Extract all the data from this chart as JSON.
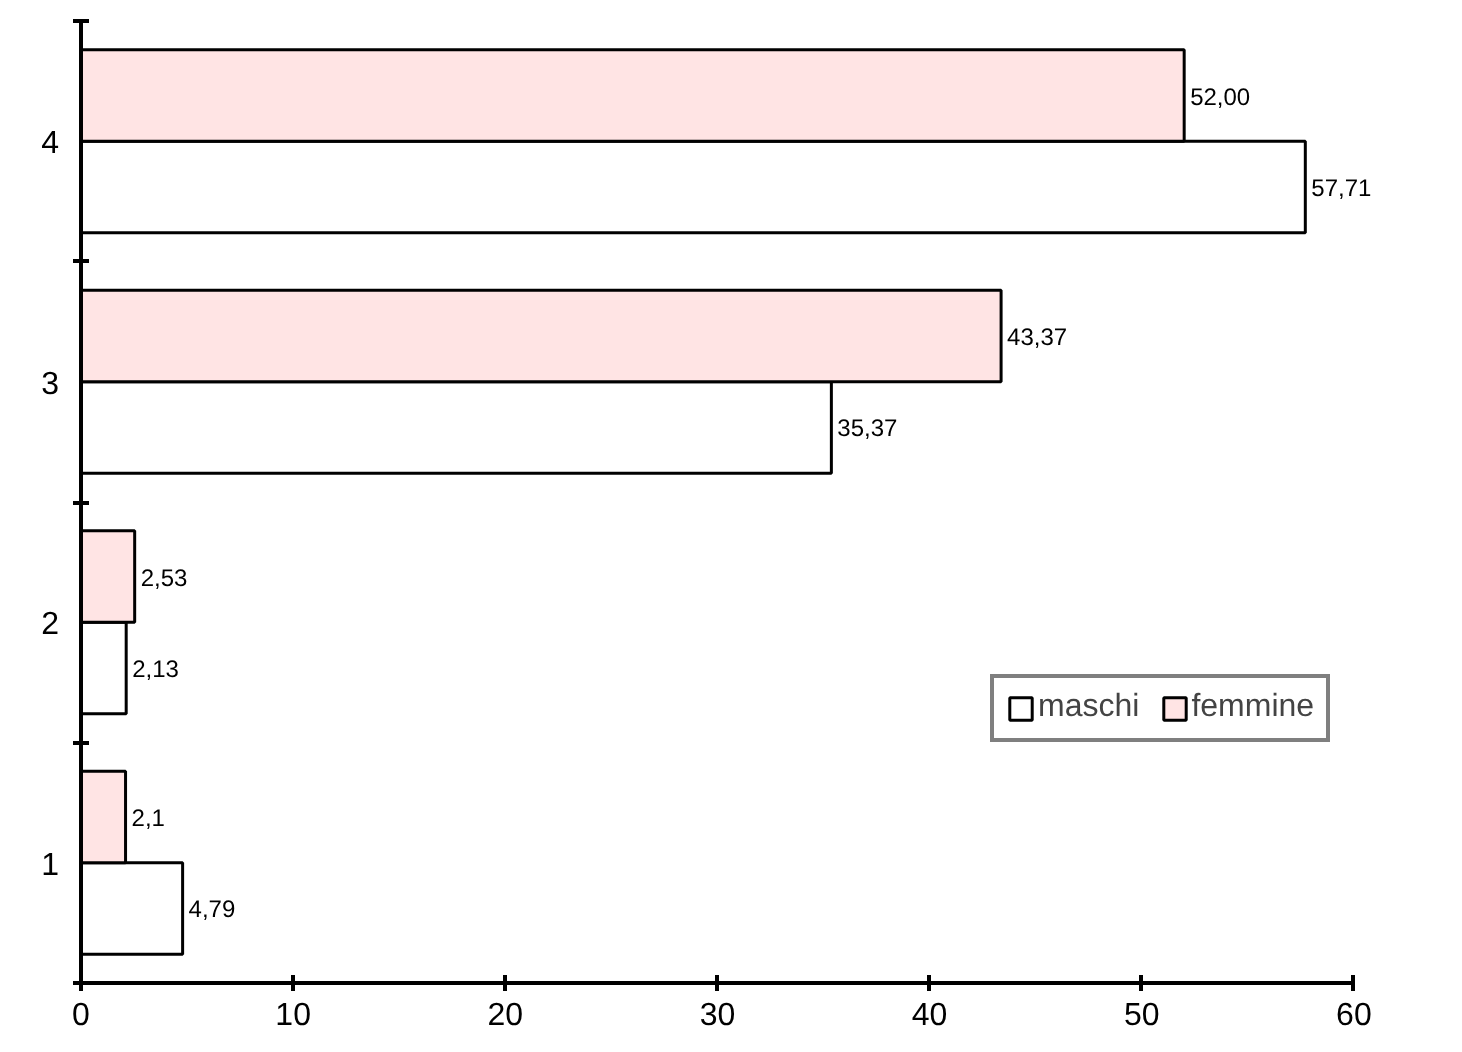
{
  "chart_data": {
    "type": "bar",
    "orientation": "horizontal",
    "categories": [
      "4",
      "3",
      "2",
      "1"
    ],
    "series": [
      {
        "name": "maschi",
        "color": "#ffffff",
        "values": [
          57.71,
          35.37,
          2.13,
          4.79
        ],
        "value_labels": [
          "57,71",
          "35,37",
          "2,13",
          "4,79"
        ]
      },
      {
        "name": "femmine",
        "color": "#ffe4e4",
        "values": [
          52.0,
          43.37,
          2.53,
          2.1
        ],
        "value_labels": [
          "52,00",
          "43,37",
          "2,53",
          "2,1"
        ]
      }
    ],
    "xlim": [
      0,
      60
    ],
    "xticks": [
      0,
      10,
      20,
      30,
      40,
      50,
      60
    ],
    "grid": false,
    "legend": "right"
  }
}
